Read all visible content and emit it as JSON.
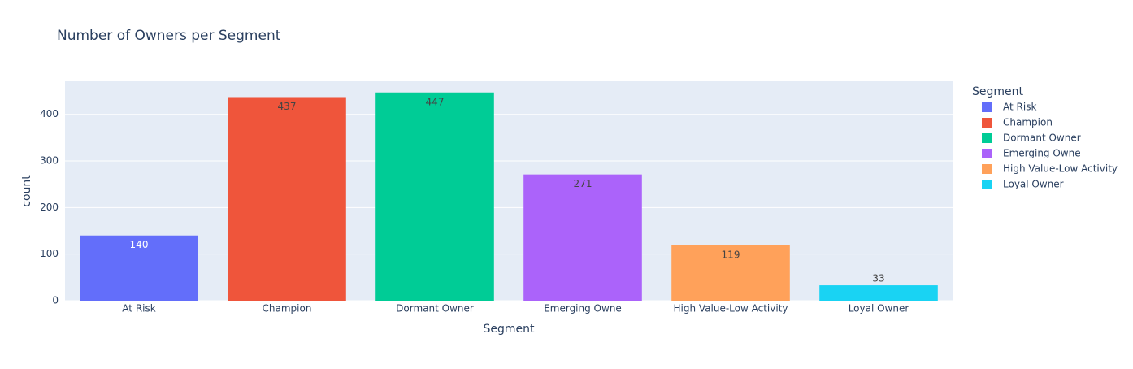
{
  "chart_data": {
    "type": "bar",
    "title": "Number of Owners per Segment",
    "categories": [
      "At Risk",
      "Champion",
      "Dormant Owner",
      "Emerging Owne",
      "High Value-Low Activity",
      "Loyal Owner"
    ],
    "values": [
      140,
      437,
      447,
      271,
      119,
      33
    ],
    "colors": [
      "#636efa",
      "#EF553B",
      "#00cc96",
      "#ab63fa",
      "#FFA15A",
      "#19d3f3"
    ],
    "x_label": "Segment",
    "y_label": "count",
    "ylim": [
      0,
      471
    ],
    "yticks": [
      0,
      100,
      200,
      300,
      400
    ],
    "grid": true,
    "legend_title": "Segment",
    "legend": "right"
  }
}
